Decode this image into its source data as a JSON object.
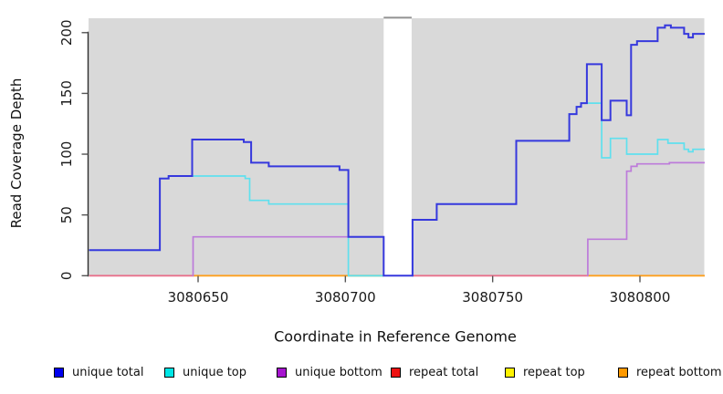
{
  "chart_data": {
    "type": "line",
    "subtype": "step-coverage",
    "title": "",
    "xlabel": "Coordinate in Reference Genome",
    "ylabel": "Read Coverage Depth",
    "xlim": [
      3080613,
      3080822
    ],
    "ylim": [
      0,
      212
    ],
    "grid": false,
    "panel_bg": "#d9d9d9",
    "x_ticks": [
      3080650,
      3080700,
      3080750,
      3080800
    ],
    "y_ticks": [
      0,
      50,
      100,
      150,
      200
    ],
    "gap_region": {
      "x1": 3080713,
      "x2": 3080722.5,
      "fill": "#ffffff",
      "top_border": "#919191"
    },
    "series": [
      {
        "name": "unique total",
        "color": "#3638dd",
        "width": 2.0,
        "segments": [
          {
            "end": 3080822,
            "points": [
              [
                3080613,
                21
              ],
              [
                3080637,
                80
              ],
              [
                3080640,
                82
              ],
              [
                3080648,
                112
              ],
              [
                3080665.5,
                110
              ],
              [
                3080668,
                93
              ],
              [
                3080674,
                90
              ],
              [
                3080698,
                87
              ],
              [
                3080701,
                32
              ],
              [
                3080713,
                0
              ],
              [
                3080722.5,
                0
              ],
              [
                3080722.8,
                46
              ],
              [
                3080731,
                59
              ],
              [
                3080758,
                111
              ],
              [
                3080776,
                133
              ],
              [
                3080778.5,
                139
              ],
              [
                3080780,
                142
              ],
              [
                3080782,
                174
              ],
              [
                3080787,
                128
              ],
              [
                3080790,
                144
              ],
              [
                3080795.5,
                132
              ],
              [
                3080797,
                190
              ],
              [
                3080799,
                193
              ],
              [
                3080806,
                204
              ],
              [
                3080808.5,
                206
              ],
              [
                3080810.5,
                204
              ],
              [
                3080815,
                199
              ],
              [
                3080816.5,
                196
              ],
              [
                3080818,
                199
              ]
            ]
          }
        ]
      },
      {
        "name": "unique top",
        "color": "#5fe0ee",
        "width": 1.7,
        "segments": [
          {
            "end": 3080713,
            "points": [
              [
                3080613,
                21
              ],
              [
                3080637,
                80
              ],
              [
                3080640,
                82
              ],
              [
                3080666,
                80
              ],
              [
                3080667.5,
                62
              ],
              [
                3080674,
                59
              ],
              [
                3080701,
                0
              ]
            ]
          },
          {
            "end": 3080822,
            "points": [
              [
                3080722.5,
                0
              ],
              [
                3080722.8,
                46
              ],
              [
                3080731,
                59
              ],
              [
                3080758,
                111
              ],
              [
                3080776,
                133
              ],
              [
                3080778.5,
                139
              ],
              [
                3080780,
                142
              ],
              [
                3080787,
                97
              ],
              [
                3080790,
                113
              ],
              [
                3080795.5,
                100
              ],
              [
                3080806,
                112
              ],
              [
                3080809.5,
                109
              ],
              [
                3080815,
                104
              ],
              [
                3080816.5,
                102
              ],
              [
                3080818,
                104
              ]
            ]
          }
        ]
      },
      {
        "name": "unique bottom",
        "color": "#bd7bda",
        "width": 1.7,
        "segments": [
          {
            "end": 3080713,
            "points": [
              [
                3080648,
                0
              ],
              [
                3080648.3,
                32
              ]
            ]
          },
          {
            "end": 3080822,
            "points": [
              [
                3080782,
                0
              ],
              [
                3080782.3,
                30
              ],
              [
                3080795.5,
                86
              ],
              [
                3080797,
                90
              ],
              [
                3080799,
                92
              ],
              [
                3080810,
                93
              ]
            ]
          }
        ]
      },
      {
        "name": "repeat total",
        "color": "#ee1111",
        "width": 1.7,
        "drawn_as_zero_overlay": true,
        "segments": []
      },
      {
        "name": "repeat top",
        "color": "#fff200",
        "width": 1.7,
        "drawn_as_zero_overlay": true,
        "segments": []
      },
      {
        "name": "repeat bottom",
        "color": "#ff9900",
        "width": 1.7,
        "drawn_as_zero_overlay": true,
        "segments": []
      }
    ],
    "zero_line_segments": [
      {
        "from": 3080648,
        "to": 3080713,
        "color": "#ffa01e"
      },
      {
        "from": 3080782,
        "to": 3080822,
        "color": "#ffa01e"
      },
      {
        "from": 3080613,
        "to": 3080648,
        "color": "#e8718c"
      },
      {
        "from": 3080722.5,
        "to": 3080782,
        "color": "#e8718c"
      },
      {
        "from": 3080701,
        "to": 3080713,
        "color": "#93d8a8"
      }
    ]
  },
  "legend": {
    "items": [
      {
        "label": "unique total",
        "color": "#0000ee"
      },
      {
        "label": "unique top",
        "color": "#00e6e6"
      },
      {
        "label": "unique bottom",
        "color": "#a614cf"
      },
      {
        "label": "repeat total",
        "color": "#ee1111"
      },
      {
        "label": "repeat top",
        "color": "#fff200"
      },
      {
        "label": "repeat bottom",
        "color": "#ff9900"
      }
    ]
  }
}
